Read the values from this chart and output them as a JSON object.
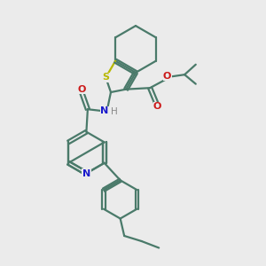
{
  "bg_color": "#ebebeb",
  "bond_color": "#4a7a6a",
  "S_color": "#b8b800",
  "N_color": "#1a1acc",
  "O_color": "#cc1a1a",
  "H_color": "#888888",
  "line_width": 1.6,
  "figsize": [
    3.0,
    3.0
  ],
  "dpi": 100,
  "xlim": [
    0,
    10
  ],
  "ylim": [
    0,
    10
  ]
}
